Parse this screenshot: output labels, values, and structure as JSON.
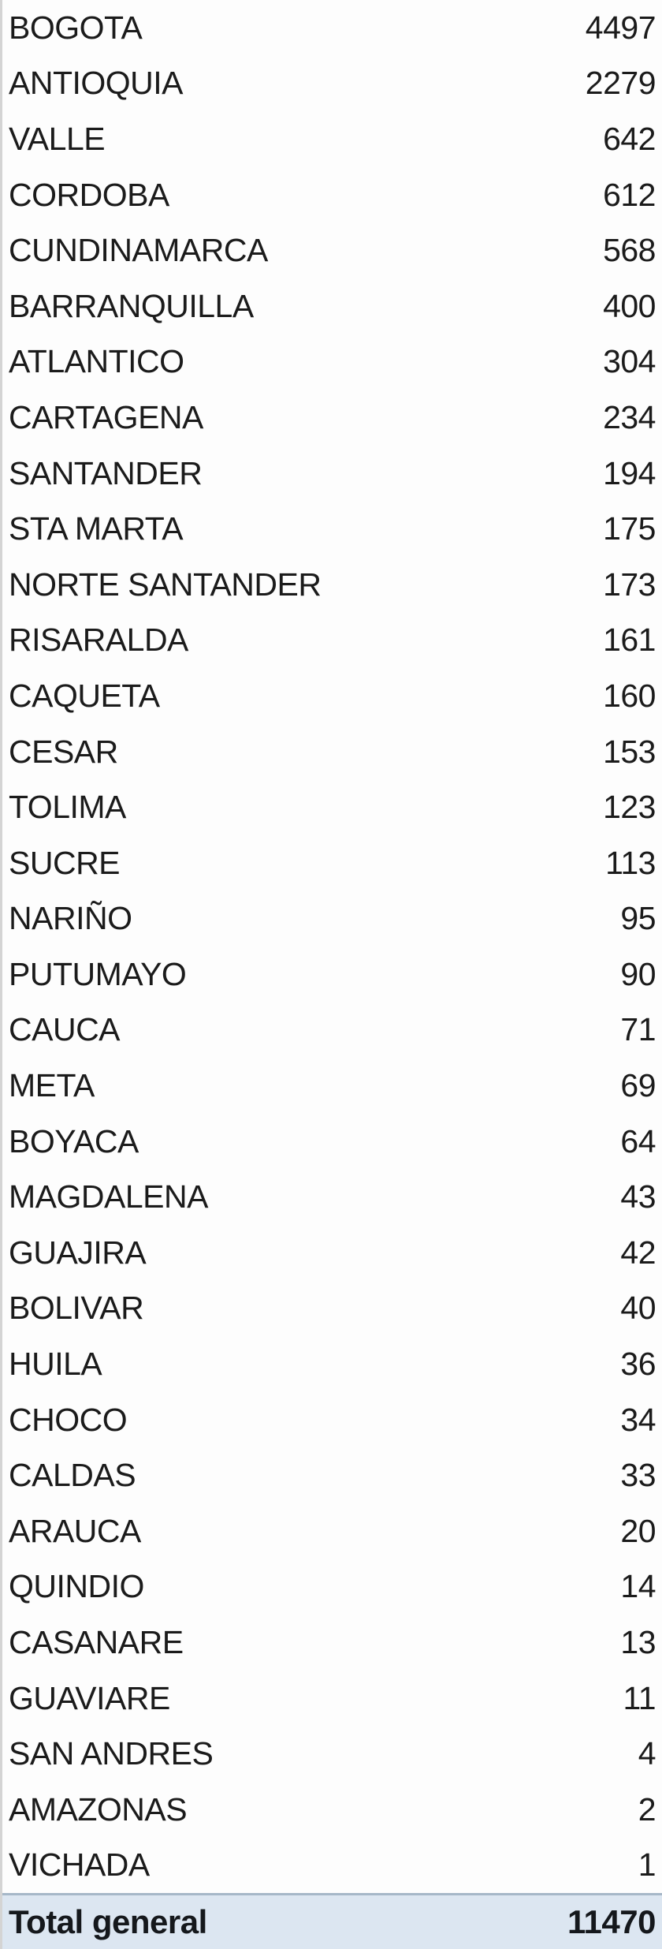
{
  "table": {
    "rows": [
      {
        "label": "BOGOTA",
        "value": "4497"
      },
      {
        "label": "ANTIOQUIA",
        "value": "2279"
      },
      {
        "label": "VALLE",
        "value": "642"
      },
      {
        "label": "CORDOBA",
        "value": "612"
      },
      {
        "label": "CUNDINAMARCA",
        "value": "568"
      },
      {
        "label": "BARRANQUILLA",
        "value": "400"
      },
      {
        "label": "ATLANTICO",
        "value": "304"
      },
      {
        "label": "CARTAGENA",
        "value": "234"
      },
      {
        "label": "SANTANDER",
        "value": "194"
      },
      {
        "label": "STA MARTA",
        "value": "175"
      },
      {
        "label": "NORTE SANTANDER",
        "value": "173"
      },
      {
        "label": "RISARALDA",
        "value": "161"
      },
      {
        "label": "CAQUETA",
        "value": "160"
      },
      {
        "label": "CESAR",
        "value": "153"
      },
      {
        "label": "TOLIMA",
        "value": "123"
      },
      {
        "label": "SUCRE",
        "value": "113"
      },
      {
        "label": "NARIÑO",
        "value": "95"
      },
      {
        "label": "PUTUMAYO",
        "value": "90"
      },
      {
        "label": "CAUCA",
        "value": "71"
      },
      {
        "label": "META",
        "value": "69"
      },
      {
        "label": "BOYACA",
        "value": "64"
      },
      {
        "label": "MAGDALENA",
        "value": "43"
      },
      {
        "label": "GUAJIRA",
        "value": "42"
      },
      {
        "label": "BOLIVAR",
        "value": "40"
      },
      {
        "label": "HUILA",
        "value": "36"
      },
      {
        "label": "CHOCO",
        "value": "34"
      },
      {
        "label": "CALDAS",
        "value": "33"
      },
      {
        "label": "ARAUCA",
        "value": "20"
      },
      {
        "label": "QUINDIO",
        "value": "14"
      },
      {
        "label": "CASANARE",
        "value": "13"
      },
      {
        "label": "GUAVIARE",
        "value": "11"
      },
      {
        "label": "SAN ANDRES",
        "value": "4"
      },
      {
        "label": "AMAZONAS",
        "value": "2"
      },
      {
        "label": "VICHADA",
        "value": "1"
      }
    ],
    "total": {
      "label": "Total general",
      "value": "11470"
    }
  },
  "colors": {
    "text": "#1b1b1b",
    "background": "#fdfdfd",
    "gridline": "#d4d4d4",
    "total_background": "#dce6f1",
    "total_border": "#a6b7c8",
    "total_text": "#15181c"
  }
}
